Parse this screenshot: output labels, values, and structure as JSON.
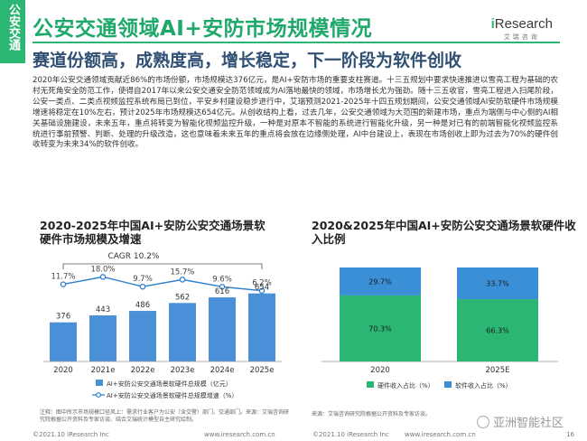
{
  "sidebar": {
    "label": "公安交通"
  },
  "header": {
    "title": "公安交通领域AI+安防市场规模情况",
    "subtitle": "赛道份额高，成熟度高，增长稳定，下一阶段为软件创收",
    "logo_brand_i": "i",
    "logo_brand_rest": "Research",
    "logo_cn": "艾瑞咨询"
  },
  "paragraph": "2020年公安交通领域贡献近86%的市场份额，市场规模达376亿元，是AI+安防市场的重要支柱赛道。十三五规划中要求快速推进以雪亮工程为基础的农村无死角安全防范工作，使得自2017年以来公安交通安全防范领域成为AI落地最快的领域，市场增长尤为强劲。随十三五收官，雪亮工程进入扫尾阶段，公安一类点、二类点视频监控系统布局已到位，平安乡村建设稳步进行中，艾瑞预测2021-2025年十四五规划期间，公安交通领域AI安防软硬件市场规模增速将稳定在10%左右，预计2025年市场规模达654亿元。从创收结构上看，过去几年，公安交通领域为大范围的新建市场，重点为端侧与中心侧的AI相关基础设施建设，未来五年，重点将转变为智能化视频监控升级，一种是对原本不智能的系统进行智能化升级，另一种是对已有的前端智能化视频监控系统进行事前预警、判断、处理的升级改造，这也意味着未来五年的重点将会放在边缘侧处理，AI中台建设上，表现在市场创收上即为过去为70%的硬件创收转变为未来34%的软件创收。",
  "chart1": {
    "title": "2020-2025年中国AI+安防公安交通场景软硬件市场规模及增速",
    "cagr_label": "CAGR 10.2%",
    "note": "注释：图中所示市场规模口径风上：需求行业客户为公安（含交警）部门、交通部门。来源：艾瑞咨询研究院根据公开资料及专家访谈、结合艾瑞统计模型自主研究绘制。"
  },
  "chart2": {
    "title": "2020&2025年中国AI+安防公安交通场景软硬件收入比例",
    "source": "来源：艾瑞咨询研究院根据公开资料及专家访谈。"
  },
  "chart_data": [
    {
      "type": "bar",
      "title": "2020-2025年中国AI+安防公安交通场景软硬件市场规模及增速",
      "categories": [
        "2020",
        "2021e",
        "2022e",
        "2023e",
        "2024e",
        "2025e"
      ],
      "series": [
        {
          "name": "AI+安防公安交通场景软硬件总规模（亿元）",
          "type": "bar",
          "values": [
            376,
            443,
            486,
            562,
            616,
            654
          ],
          "labels": [
            "376",
            "443",
            "486",
            "562",
            "616",
            "654"
          ],
          "color": "#4a90d9"
        },
        {
          "name": "AI+安防公安交通场景软硬件总规模增速（%）",
          "type": "line",
          "values": [
            11.7,
            18.0,
            9.7,
            15.7,
            9.6,
            6.2
          ],
          "labels": [
            "11.7%",
            "18.0%",
            "9.7%",
            "15.7%",
            "9.6%",
            "6.2%"
          ],
          "color": "#2d7fd0"
        }
      ],
      "ylim": [
        0,
        700
      ]
    },
    {
      "type": "bar",
      "stacked": true,
      "percent": true,
      "title": "2020&2025年中国AI+安防公安交通场景软硬件收入比例",
      "categories": [
        "2020",
        "2025E"
      ],
      "series": [
        {
          "name": "硬件收入占比（%）",
          "values": [
            70.3,
            66.3
          ],
          "labels": [
            "70.3%",
            "66.3%"
          ],
          "color": "#2bb673"
        },
        {
          "name": "软件收入占比（%）",
          "values": [
            29.7,
            33.7
          ],
          "labels": [
            "29.7%",
            "33.7%"
          ],
          "color": "#3a8fd6"
        }
      ],
      "ylim": [
        0,
        100
      ]
    }
  ],
  "footer": {
    "left": "©2021.10 iResearch Inc",
    "center1": "www.iresearch.com.cn",
    "mid": "©2021.10 iResearch Inc",
    "center2": "www.iresearch.com.cn",
    "watermark": "亚洲智能社区",
    "page": "16"
  }
}
